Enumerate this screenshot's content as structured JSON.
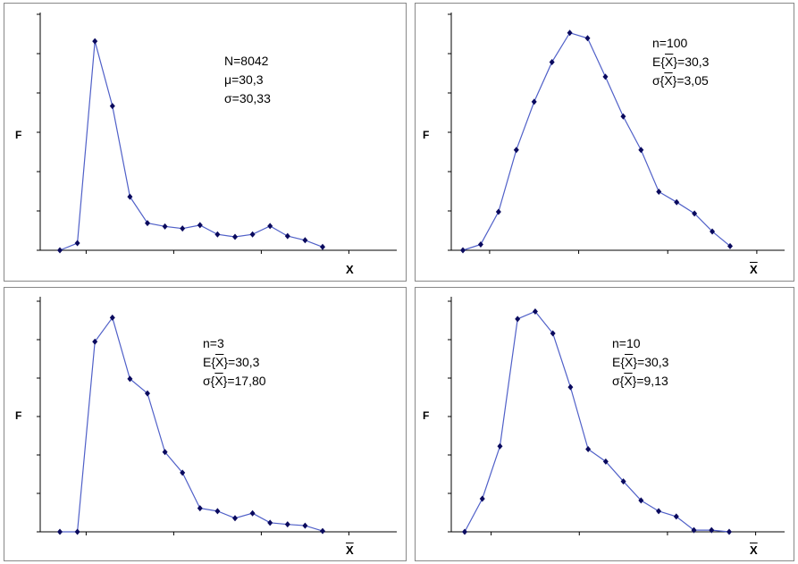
{
  "colors": {
    "line": "#5060c8",
    "marker": "#0a0a5e",
    "axis": "#000000",
    "border": "#888888"
  },
  "chart_data": [
    {
      "type": "line",
      "panel": "top-left",
      "ylabel": "F",
      "xlabel": "X",
      "xlabel_overline": false,
      "stats": [
        "N=8042",
        "μ=30,3",
        "σ=30,33"
      ],
      "x_categories": 15,
      "ylim": [
        0,
        5.6
      ],
      "series": [
        {
          "values": [
            0,
            0.17,
            5.0,
            3.45,
            1.28,
            0.65,
            0.57,
            0.52,
            0.6,
            0.38,
            0.32,
            0.38,
            0.58,
            0.34,
            0.24,
            0.08
          ]
        }
      ]
    },
    {
      "type": "line",
      "panel": "top-right",
      "ylabel": "F",
      "xlabel": "X",
      "xlabel_overline": true,
      "stats": [
        "n=100",
        "E{X}=30,3",
        "σ{X}=3,05"
      ],
      "x_categories": 15,
      "ylim": [
        0,
        5.6
      ],
      "series": [
        {
          "values": [
            0,
            0.14,
            0.92,
            2.4,
            3.55,
            4.5,
            5.2,
            5.07,
            4.15,
            3.2,
            2.4,
            1.4,
            1.15,
            0.88,
            0.45,
            0.1
          ]
        }
      ]
    },
    {
      "type": "line",
      "panel": "bottom-left",
      "ylabel": "F",
      "xlabel": "X",
      "xlabel_overline": true,
      "stats": [
        "n=3",
        "E{X}=30,3",
        "σ{X}=17,80"
      ],
      "x_categories": 15,
      "ylim": [
        0,
        5.6
      ],
      "series": [
        {
          "values": [
            0,
            0,
            4.6,
            5.18,
            3.7,
            3.35,
            1.93,
            1.43,
            0.57,
            0.5,
            0.33,
            0.45,
            0.22,
            0.18,
            0.15,
            0.02
          ]
        }
      ]
    },
    {
      "type": "line",
      "panel": "bottom-right",
      "ylabel": "F",
      "xlabel": "X",
      "xlabel_overline": true,
      "stats": [
        "n=10",
        "E{X}=30,3",
        "σ{X}=9,13"
      ],
      "x_categories": 15,
      "ylim": [
        0,
        5.6
      ],
      "series": [
        {
          "values": [
            0,
            0.8,
            2.07,
            5.15,
            5.33,
            4.8,
            3.5,
            2.0,
            1.7,
            1.22,
            0.76,
            0.5,
            0.37,
            0.04,
            0.04,
            0
          ]
        }
      ]
    }
  ]
}
